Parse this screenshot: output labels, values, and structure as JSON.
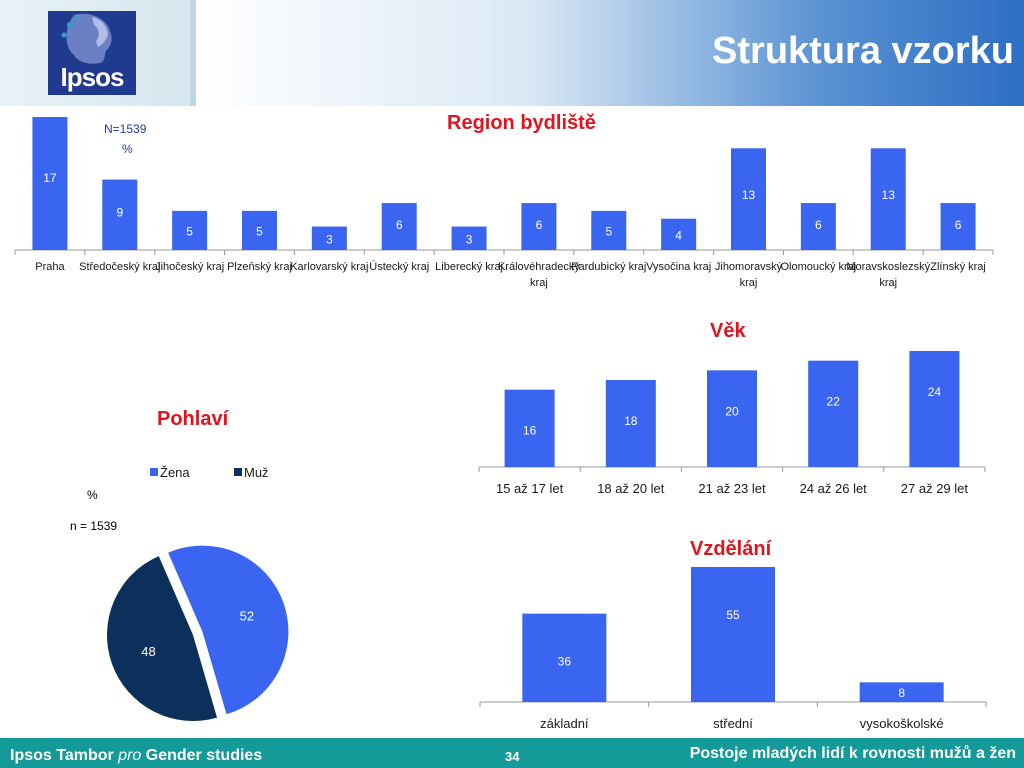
{
  "header": {
    "logo_text": "Ipsos",
    "title": "Struktura vzorku"
  },
  "footer": {
    "left_prefix": "Ipsos Tambor ",
    "left_italic": "pro",
    "left_suffix": " Gender studies",
    "page_number": "34",
    "right": "Postoje mladých lidí k rovnosti mužů a žen"
  },
  "colors": {
    "bar": "#3a65f0",
    "dark": "#0d2f5c",
    "title_red": "#e0141e",
    "footer": "#149a99"
  },
  "chart_data": [
    {
      "type": "bar",
      "title": "Region bydliště",
      "notes": [
        "N=1539",
        "%"
      ],
      "categories": [
        [
          "Praha"
        ],
        [
          "Středočeský kraj"
        ],
        [
          "Jihočeský kraj"
        ],
        [
          "Plzeňský kraj"
        ],
        [
          "Karlovarský kraj"
        ],
        [
          "Ústecký kraj"
        ],
        [
          "Liberecký kraj"
        ],
        [
          "Královéhradecký",
          "kraj"
        ],
        [
          "Pardubický kraj"
        ],
        [
          "Vysočina kraj"
        ],
        [
          "Jihomoravský",
          "kraj"
        ],
        [
          "Olomoucký kraj"
        ],
        [
          "Moravskoslezský",
          "kraj"
        ],
        [
          "Zlínský kraj"
        ]
      ],
      "values": [
        17,
        9,
        5,
        5,
        3,
        6,
        3,
        6,
        5,
        4,
        13,
        6,
        13,
        6
      ],
      "ylim": [
        0,
        17
      ]
    },
    {
      "type": "bar",
      "title": "Věk",
      "categories": [
        "15 až 17 let",
        "18 až 20 let",
        "21 až 23 let",
        "24 až 26 let",
        "27 až 29 let"
      ],
      "values": [
        16,
        18,
        20,
        22,
        24
      ],
      "ylim": [
        0,
        24
      ]
    },
    {
      "type": "bar",
      "title": "Vzdělání",
      "categories": [
        "základní",
        "střední",
        "vysokoškolské"
      ],
      "values": [
        36,
        55,
        8
      ],
      "ylim": [
        0,
        55
      ]
    },
    {
      "type": "pie",
      "title": "Pohlaví",
      "notes": [
        "%",
        "n = 1539"
      ],
      "legend": "top",
      "labels": [
        "Žena",
        "Muž"
      ],
      "values": [
        52,
        48
      ]
    }
  ]
}
